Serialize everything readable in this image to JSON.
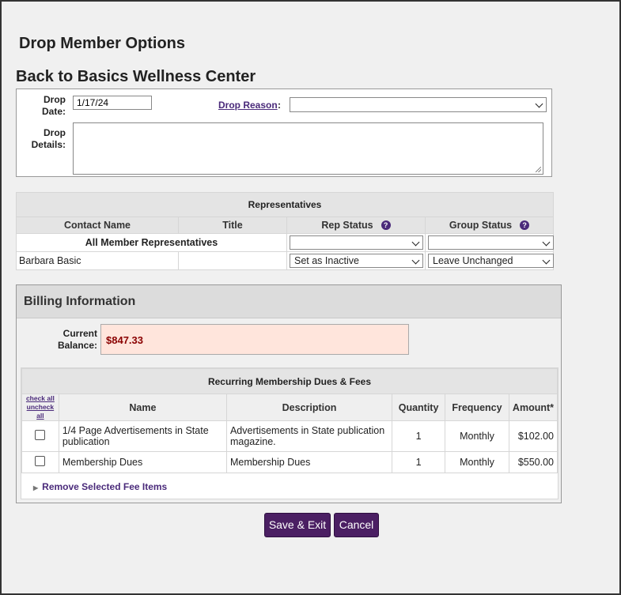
{
  "page_title": "Drop Member Options",
  "org_name": "Back to Basics Wellness Center",
  "drop": {
    "date_label_1": "Drop",
    "date_label_2": "Date:",
    "date_value": "1/17/24",
    "reason_label": "Drop Reason",
    "reason_colon": ":",
    "reason_value": "",
    "details_label_1": "Drop",
    "details_label_2": "Details:",
    "details_value": ""
  },
  "reps": {
    "caption": "Representatives",
    "headers": [
      "Contact Name",
      "Title",
      "Rep Status",
      "Group Status"
    ],
    "help_glyph": "?",
    "all_row": {
      "label": "All Member Representatives",
      "rep_status": "",
      "group_status": ""
    },
    "rows": [
      {
        "name": "Barbara Basic",
        "title": "",
        "rep_status": "Set as Inactive",
        "group_status": "Leave Unchanged"
      }
    ]
  },
  "billing": {
    "heading": "Billing Information",
    "balance_label_1": "Current",
    "balance_label_2": "Balance:",
    "balance_value": "$847.33",
    "fees_caption": "Recurring Membership Dues & Fees",
    "check_all": "check all",
    "uncheck_all": "uncheck all",
    "headers": [
      "Name",
      "Description",
      "Quantity",
      "Frequency",
      "Amount*"
    ],
    "items": [
      {
        "name": "1/4 Page Advertisements in State publication",
        "description": "Advertisements in State publication magazine.",
        "quantity": "1",
        "frequency": "Monthly",
        "amount": "$102.00",
        "checked": false
      },
      {
        "name": "Membership Dues",
        "description": "Membership Dues",
        "quantity": "1",
        "frequency": "Monthly",
        "amount": "$550.00",
        "checked": false
      }
    ],
    "remove_label": "Remove Selected Fee Items"
  },
  "buttons": {
    "save": "Save & Exit",
    "cancel": "Cancel"
  },
  "colors": {
    "accent": "#4b1f63",
    "balance_bg": "#ffe5dc",
    "balance_text": "#8a0000"
  }
}
